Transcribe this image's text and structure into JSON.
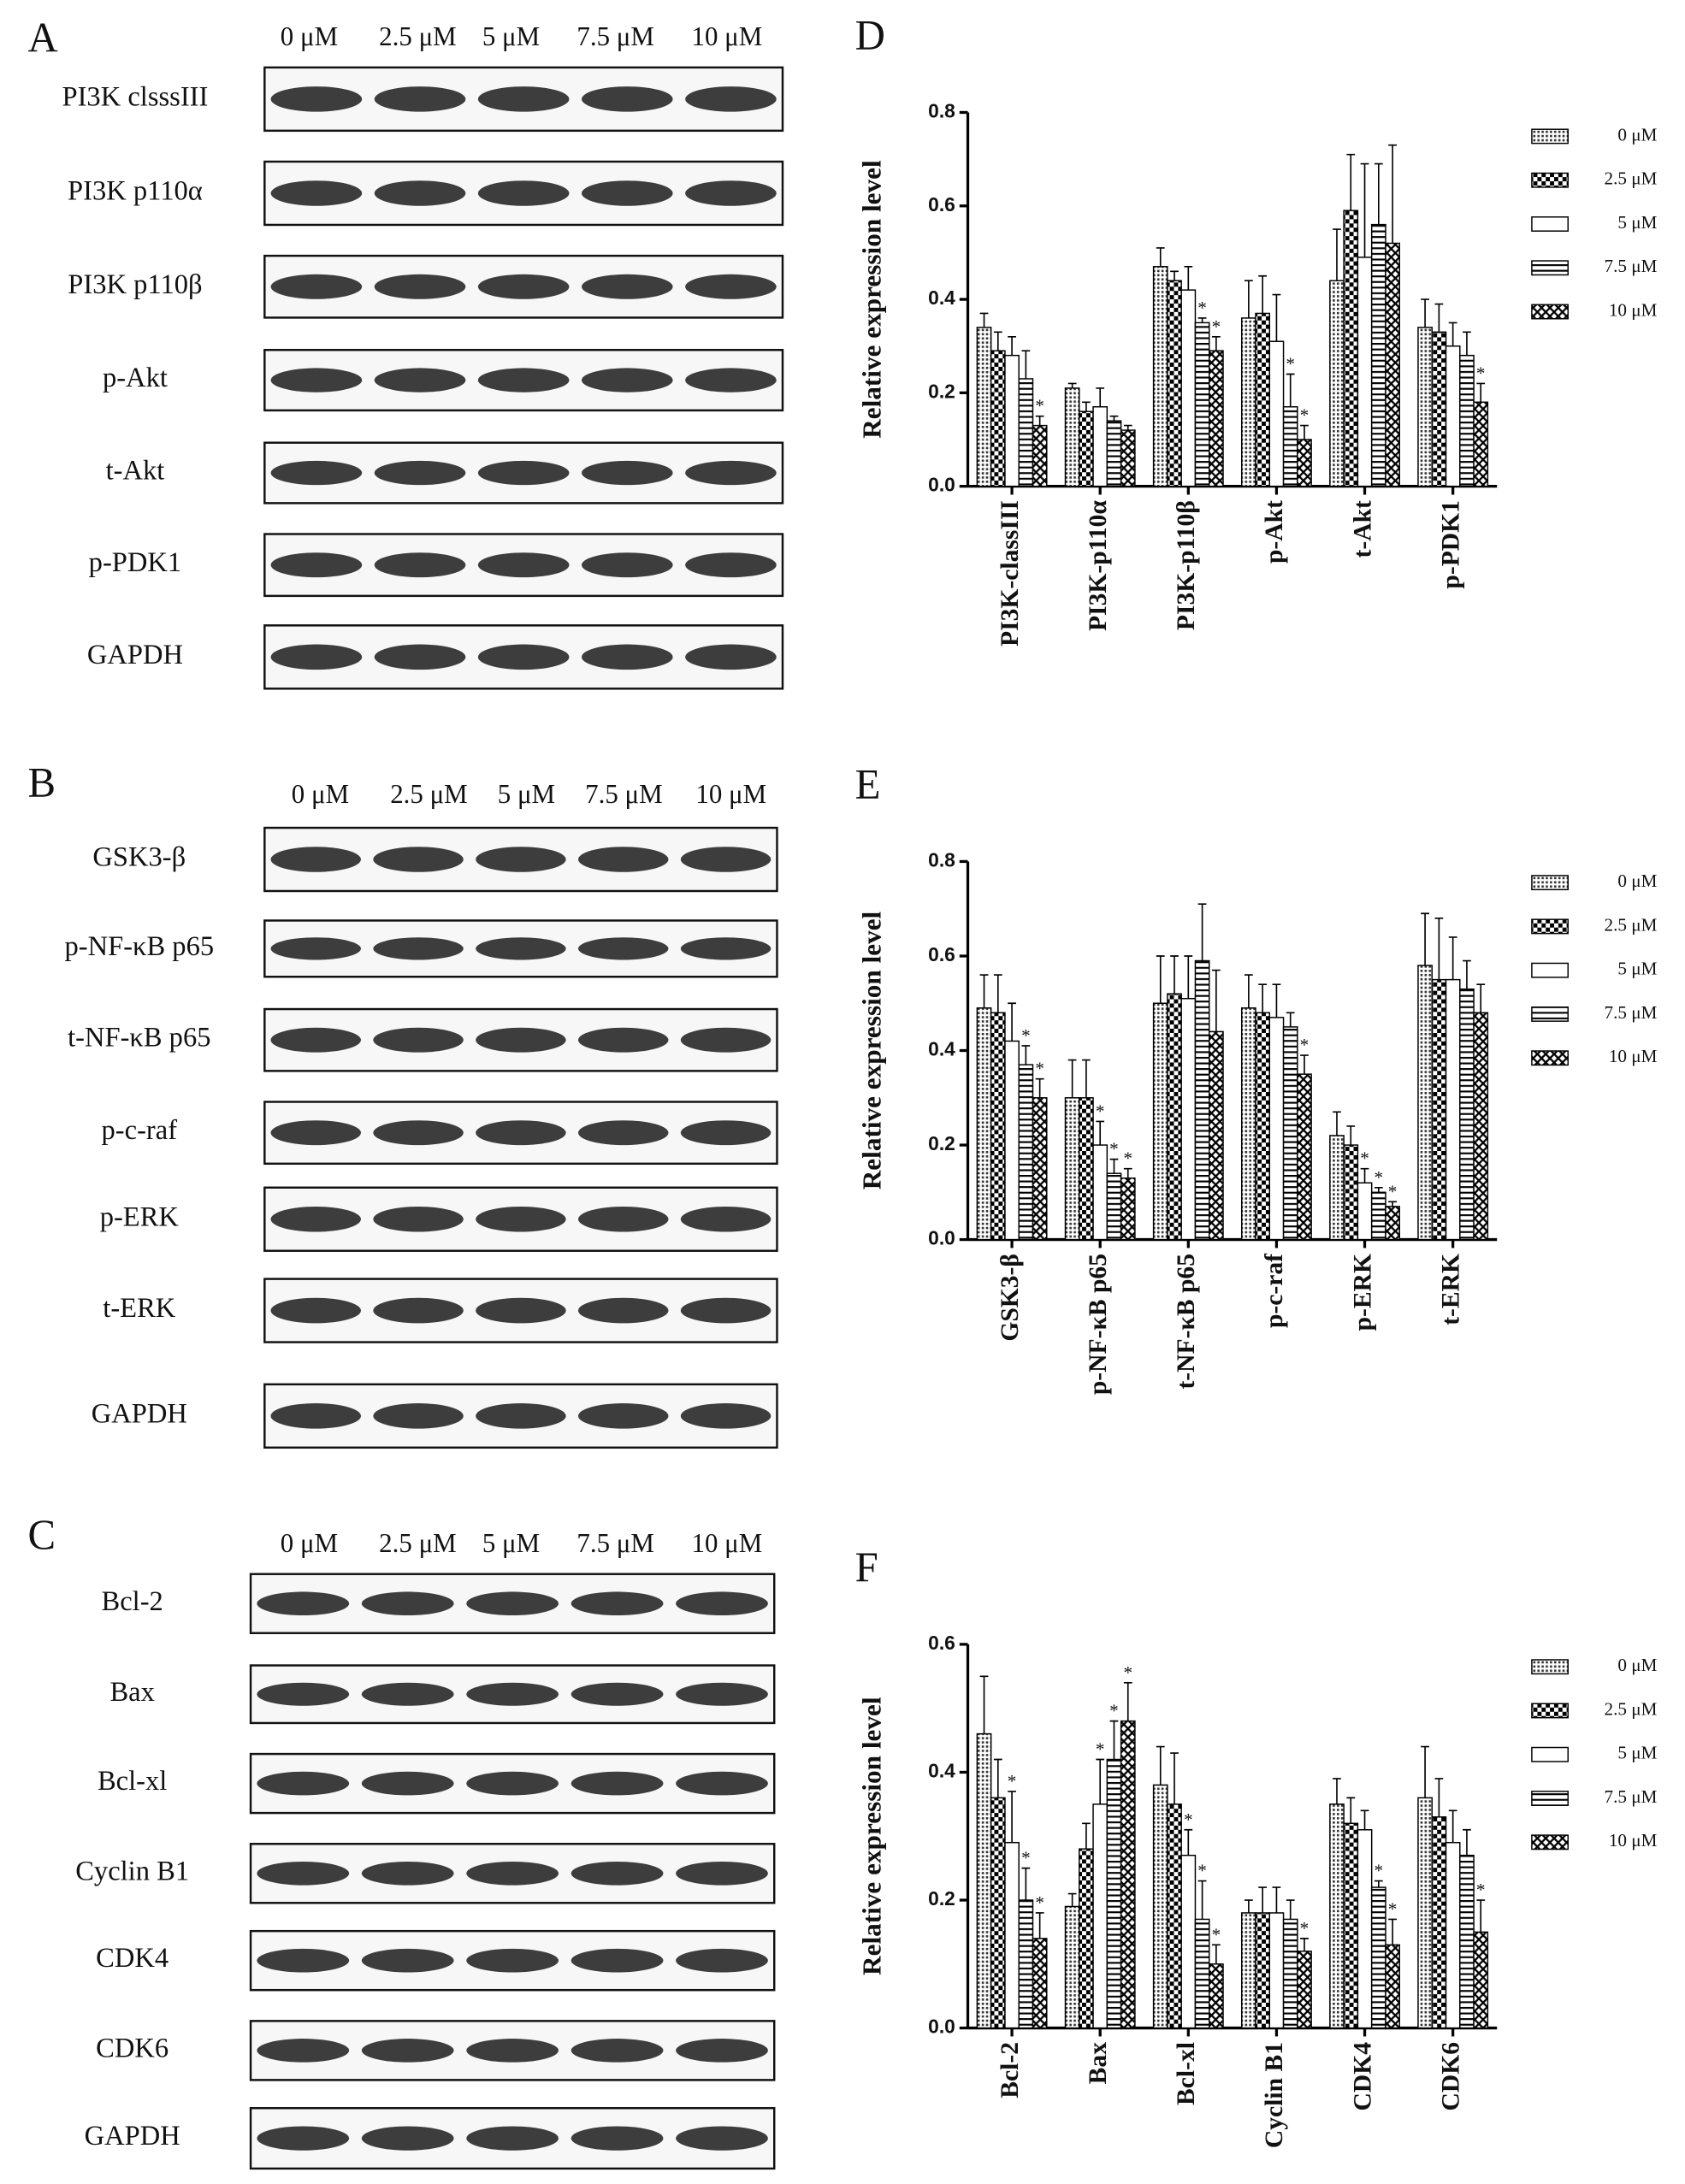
{
  "blots": [
    {
      "letter": "A",
      "concentrations": [
        "0 μM",
        "2.5 μM",
        "5 μM",
        "7.5 μM",
        "10 μM"
      ],
      "rows": [
        "PI3K clsssIII",
        "PI3K p110α",
        "PI3K p110β",
        "p-Akt",
        "t-Akt",
        "p-PDK1",
        "GAPDH"
      ]
    },
    {
      "letter": "B",
      "concentrations": [
        "0 μM",
        "2.5 μM",
        "5 μM",
        "7.5 μM",
        "10 μM"
      ],
      "rows": [
        "GSK3-β",
        "p-NF-κB p65",
        "t-NF-κB p65",
        "p-c-raf",
        "p-ERK",
        "t-ERK",
        "GAPDH"
      ]
    },
    {
      "letter": "C",
      "concentrations": [
        "0 μM",
        "2.5 μM",
        "5 μM",
        "7.5 μM",
        "10 μM"
      ],
      "rows": [
        "Bcl-2",
        "Bax",
        "Bcl-xl",
        "Cyclin B1",
        "CDK4",
        "CDK6",
        "GAPDH"
      ]
    }
  ],
  "chart_data": [
    {
      "type": "bar",
      "letter": "D",
      "y_label": "Relative expression level",
      "categories": [
        "PI3K-classIII",
        "PI3K-p110α",
        "PI3K-p110β",
        "p-Akt",
        "t-Akt",
        "p-PDK1"
      ],
      "ylim": [
        0,
        0.8
      ],
      "yticks": [
        {
          "value": 0,
          "label": "0.0"
        },
        0.2,
        0.4,
        0.6,
        0.8
      ],
      "series": [
        {
          "name": "0 μM",
          "pattern": "dots",
          "values": [
            0.34,
            0.21,
            0.47,
            0.36,
            0.44,
            0.34
          ],
          "errors": [
            0.03,
            0.01,
            0.04,
            0.08,
            0.11,
            0.06
          ],
          "marks": [
            null,
            null,
            null,
            null,
            null,
            null
          ]
        },
        {
          "name": "2.5 μM",
          "pattern": "checker",
          "values": [
            0.29,
            0.16,
            0.44,
            0.37,
            0.59,
            0.33
          ],
          "errors": [
            0.04,
            0.02,
            0.02,
            0.08,
            0.12,
            0.06
          ],
          "marks": [
            null,
            null,
            null,
            null,
            null,
            null
          ]
        },
        {
          "name": "5 μM",
          "pattern": "none",
          "values": [
            0.28,
            0.17,
            0.42,
            0.31,
            0.49,
            0.3
          ],
          "errors": [
            0.04,
            0.04,
            0.05,
            0.1,
            0.2,
            0.05
          ],
          "marks": [
            null,
            null,
            null,
            null,
            null,
            null
          ]
        },
        {
          "name": "7.5 μM",
          "pattern": "hlines",
          "values": [
            0.23,
            0.14,
            0.35,
            0.17,
            0.56,
            0.28
          ],
          "errors": [
            0.06,
            0.01,
            0.01,
            0.07,
            0.13,
            0.05
          ],
          "marks": [
            null,
            null,
            "*",
            "*",
            null,
            null
          ]
        },
        {
          "name": "10 μM",
          "pattern": "cross",
          "values": [
            0.13,
            0.12,
            0.29,
            0.1,
            0.52,
            0.18
          ],
          "errors": [
            0.02,
            0.01,
            0.03,
            0.03,
            0.21,
            0.04
          ],
          "marks": [
            "*",
            null,
            "*",
            "*",
            null,
            "*"
          ]
        }
      ]
    },
    {
      "type": "bar",
      "letter": "E",
      "y_label": "Relative expression level",
      "categories": [
        "GSK3-β",
        "p-NF-κB p65",
        "t-NF-κB p65",
        "p-c-raf",
        "p-ERK",
        "t-ERK"
      ],
      "ylim": [
        0,
        0.8
      ],
      "yticks": [
        {
          "value": 0,
          "label": "0.0"
        },
        0.2,
        0.4,
        0.6,
        0.8
      ],
      "series": [
        {
          "name": "0 μM",
          "pattern": "dots",
          "values": [
            0.49,
            0.3,
            0.5,
            0.49,
            0.22,
            0.58
          ],
          "errors": [
            0.07,
            0.08,
            0.1,
            0.07,
            0.05,
            0.11
          ],
          "marks": [
            null,
            null,
            null,
            null,
            null,
            null
          ]
        },
        {
          "name": "2.5 μM",
          "pattern": "checker",
          "values": [
            0.48,
            0.3,
            0.52,
            0.48,
            0.2,
            0.55
          ],
          "errors": [
            0.08,
            0.08,
            0.08,
            0.06,
            0.04,
            0.13
          ],
          "marks": [
            null,
            null,
            null,
            null,
            null,
            null
          ]
        },
        {
          "name": "5 μM",
          "pattern": "none",
          "values": [
            0.42,
            0.2,
            0.51,
            0.47,
            0.12,
            0.55
          ],
          "errors": [
            0.08,
            0.05,
            0.09,
            0.07,
            0.03,
            0.09
          ],
          "marks": [
            null,
            "*",
            null,
            null,
            "*",
            null
          ]
        },
        {
          "name": "7.5 μM",
          "pattern": "hlines",
          "values": [
            0.37,
            0.14,
            0.59,
            0.45,
            0.1,
            0.53
          ],
          "errors": [
            0.04,
            0.03,
            0.12,
            0.03,
            0.01,
            0.06
          ],
          "marks": [
            "*",
            "*",
            null,
            null,
            "*",
            null
          ]
        },
        {
          "name": "10 μM",
          "pattern": "cross",
          "values": [
            0.3,
            0.13,
            0.44,
            0.35,
            0.07,
            0.48
          ],
          "errors": [
            0.04,
            0.02,
            0.13,
            0.04,
            0.01,
            0.06
          ],
          "marks": [
            "*",
            "*",
            null,
            "*",
            "*",
            null
          ]
        }
      ]
    },
    {
      "type": "bar",
      "letter": "F",
      "y_label": "Relative expression level",
      "categories": [
        "Bcl-2",
        "Bax",
        "Bcl-xl",
        "Cyclin B1",
        "CDK4",
        "CDK6"
      ],
      "ylim": [
        0,
        0.6
      ],
      "yticks": [
        {
          "value": 0,
          "label": "0.0"
        },
        0.2,
        0.4,
        0.6
      ],
      "series": [
        {
          "name": "0 μM",
          "pattern": "dots",
          "values": [
            0.46,
            0.19,
            0.38,
            0.18,
            0.35,
            0.36
          ],
          "errors": [
            0.09,
            0.02,
            0.06,
            0.02,
            0.04,
            0.08
          ],
          "marks": [
            null,
            null,
            null,
            null,
            null,
            null
          ]
        },
        {
          "name": "2.5 μM",
          "pattern": "checker",
          "values": [
            0.36,
            0.28,
            0.35,
            0.18,
            0.32,
            0.33
          ],
          "errors": [
            0.06,
            0.04,
            0.08,
            0.04,
            0.04,
            0.06
          ],
          "marks": [
            null,
            null,
            null,
            null,
            null,
            null
          ]
        },
        {
          "name": "5 μM",
          "pattern": "none",
          "values": [
            0.29,
            0.35,
            0.27,
            0.18,
            0.31,
            0.29
          ],
          "errors": [
            0.08,
            0.07,
            0.04,
            0.04,
            0.03,
            0.05
          ],
          "marks": [
            "*",
            "*",
            "*",
            null,
            null,
            null
          ]
        },
        {
          "name": "7.5 μM",
          "pattern": "hlines",
          "values": [
            0.2,
            0.42,
            0.17,
            0.17,
            0.22,
            0.27
          ],
          "errors": [
            0.05,
            0.06,
            0.06,
            0.03,
            0.01,
            0.04
          ],
          "marks": [
            "*",
            "*",
            "*",
            null,
            "*",
            null
          ]
        },
        {
          "name": "10 μM",
          "pattern": "cross",
          "values": [
            0.14,
            0.48,
            0.1,
            0.12,
            0.13,
            0.15
          ],
          "errors": [
            0.04,
            0.06,
            0.03,
            0.02,
            0.04,
            0.05
          ],
          "marks": [
            "*",
            "*",
            "*",
            "*",
            "*",
            "*"
          ]
        }
      ]
    }
  ]
}
